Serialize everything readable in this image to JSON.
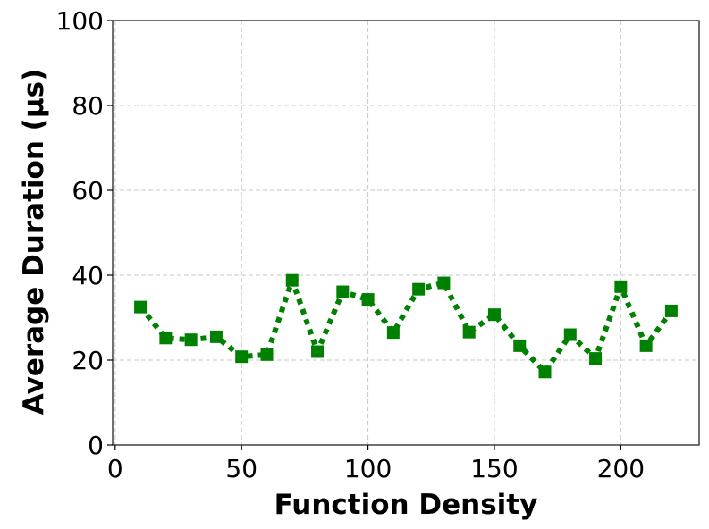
{
  "chart_data": {
    "type": "line",
    "title": "",
    "xlabel": "Function Density",
    "ylabel": "Average Duration (µs)",
    "xlim": [
      -1,
      231
    ],
    "ylim": [
      0,
      100
    ],
    "x_ticks": [
      0,
      50,
      100,
      150,
      200
    ],
    "y_ticks": [
      0,
      20,
      40,
      60,
      80,
      100
    ],
    "grid": true,
    "line_style": "dotted",
    "marker": "square",
    "color": "#008000",
    "series": [
      {
        "x": [
          10,
          20,
          30,
          40,
          50,
          60,
          70,
          80,
          90,
          100,
          110,
          120,
          130,
          140,
          150,
          160,
          170,
          180,
          190,
          200,
          210,
          220
        ],
        "values": [
          32.5,
          25.2,
          24.8,
          25.5,
          20.8,
          21.3,
          38.8,
          22.0,
          36.1,
          34.3,
          26.5,
          36.7,
          38.2,
          26.6,
          30.7,
          23.4,
          17.2,
          26.0,
          20.4,
          37.3,
          23.4,
          31.6
        ]
      }
    ]
  }
}
